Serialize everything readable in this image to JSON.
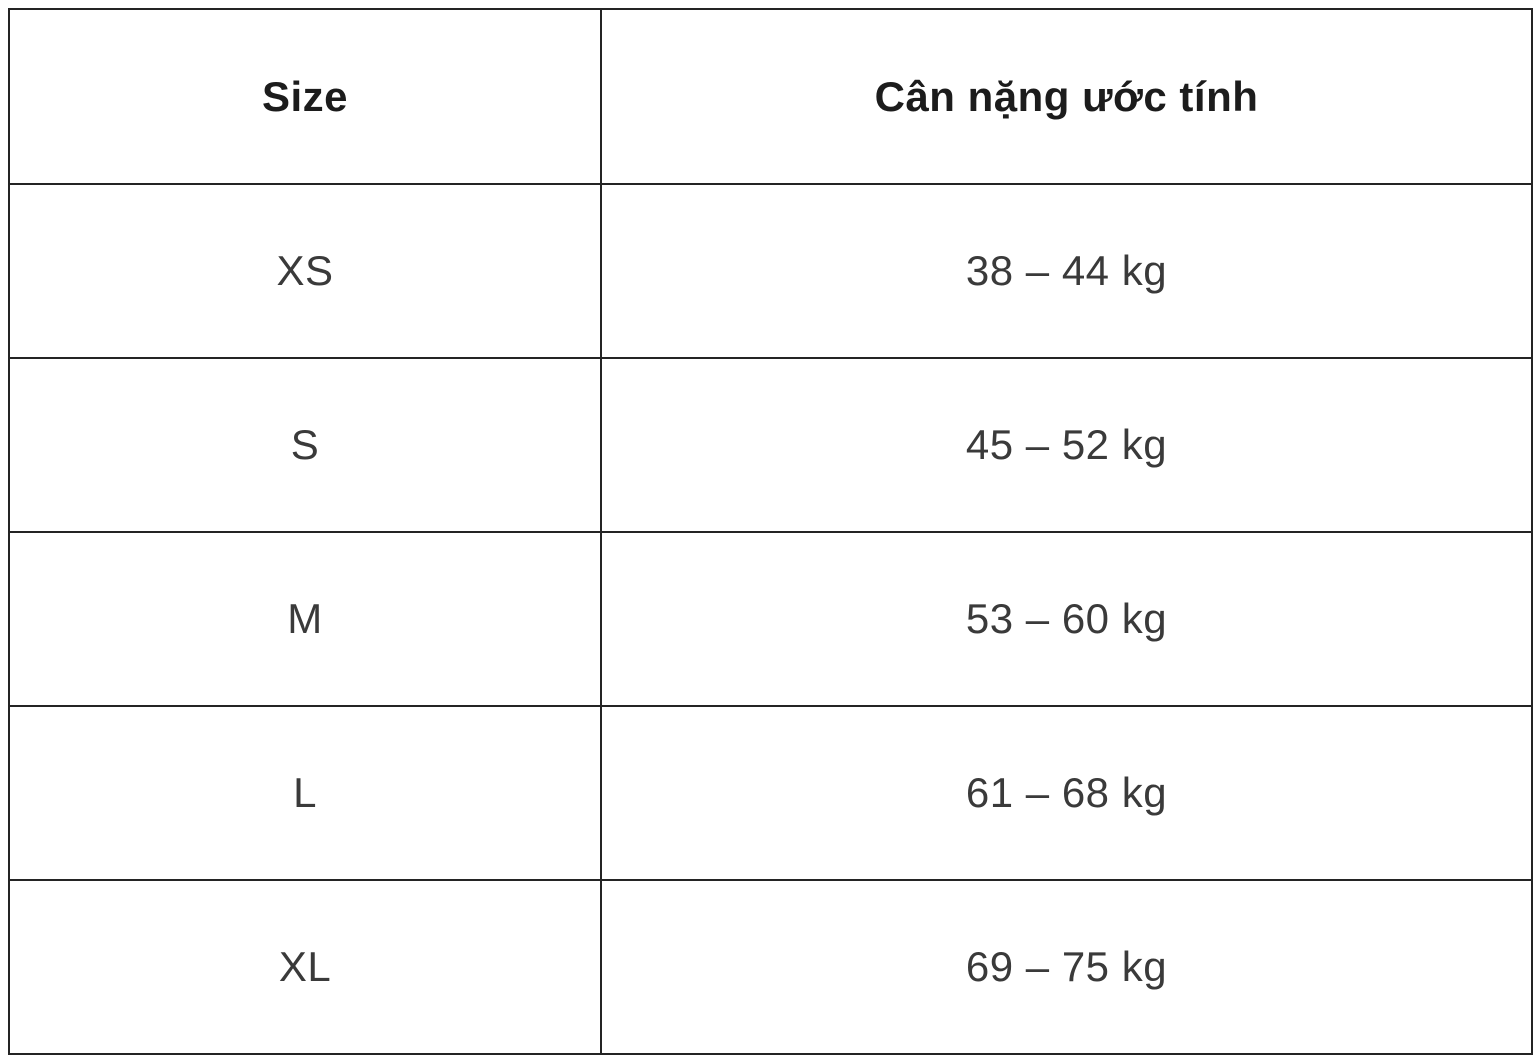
{
  "table": {
    "headers": {
      "size": "Size",
      "weight": "Cân nặng ước tính"
    },
    "rows": [
      {
        "size": "XS",
        "weight": "38 – 44 kg"
      },
      {
        "size": "S",
        "weight": "45 – 52 kg"
      },
      {
        "size": "M",
        "weight": "53 – 60 kg"
      },
      {
        "size": "L",
        "weight": "61 – 68 kg"
      },
      {
        "size": "XL",
        "weight": "69 – 75 kg"
      }
    ]
  },
  "colors": {
    "border": "#242424",
    "body_text": "#3a3a3a",
    "header_text": "#1c1c1c",
    "background": "#ffffff"
  }
}
